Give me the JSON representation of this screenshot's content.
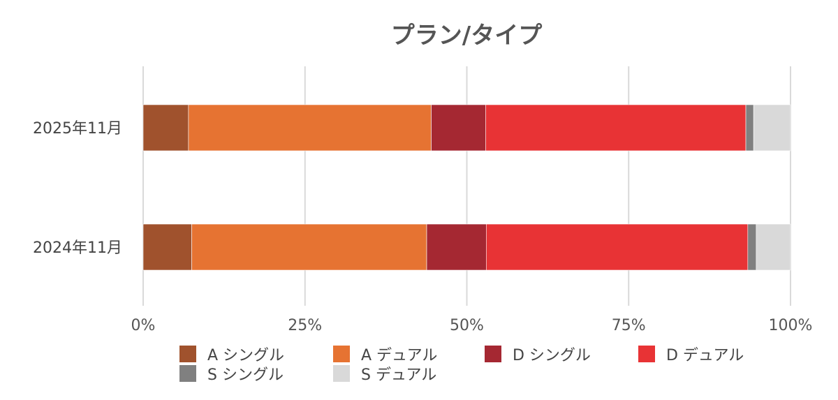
{
  "chart_data": {
    "type": "bar",
    "orientation": "horizontal",
    "stacked": "percent",
    "title": "プラン/タイプ",
    "categories": [
      "2025年11月",
      "2024年11月"
    ],
    "xlim": [
      0,
      100
    ],
    "x_ticks": [
      "0%",
      "25%",
      "50%",
      "75%",
      "100%"
    ],
    "grid": true,
    "legend_position": "bottom",
    "series": [
      {
        "name": "A シングル",
        "color": "#A0522D",
        "values": [
          7.0,
          7.5
        ]
      },
      {
        "name": "A デュアル",
        "color": "#E67332",
        "values": [
          37.5,
          36.3
        ]
      },
      {
        "name": "D シングル",
        "color": "#A52832",
        "values": [
          8.4,
          9.2
        ]
      },
      {
        "name": "D デュアル",
        "color": "#E83335",
        "values": [
          40.2,
          40.4
        ]
      },
      {
        "name": "S シングル",
        "color": "#808080",
        "values": [
          1.2,
          1.3
        ]
      },
      {
        "name": "S デュアル",
        "color": "#D9D9D9",
        "values": [
          5.7,
          5.3
        ]
      }
    ]
  }
}
